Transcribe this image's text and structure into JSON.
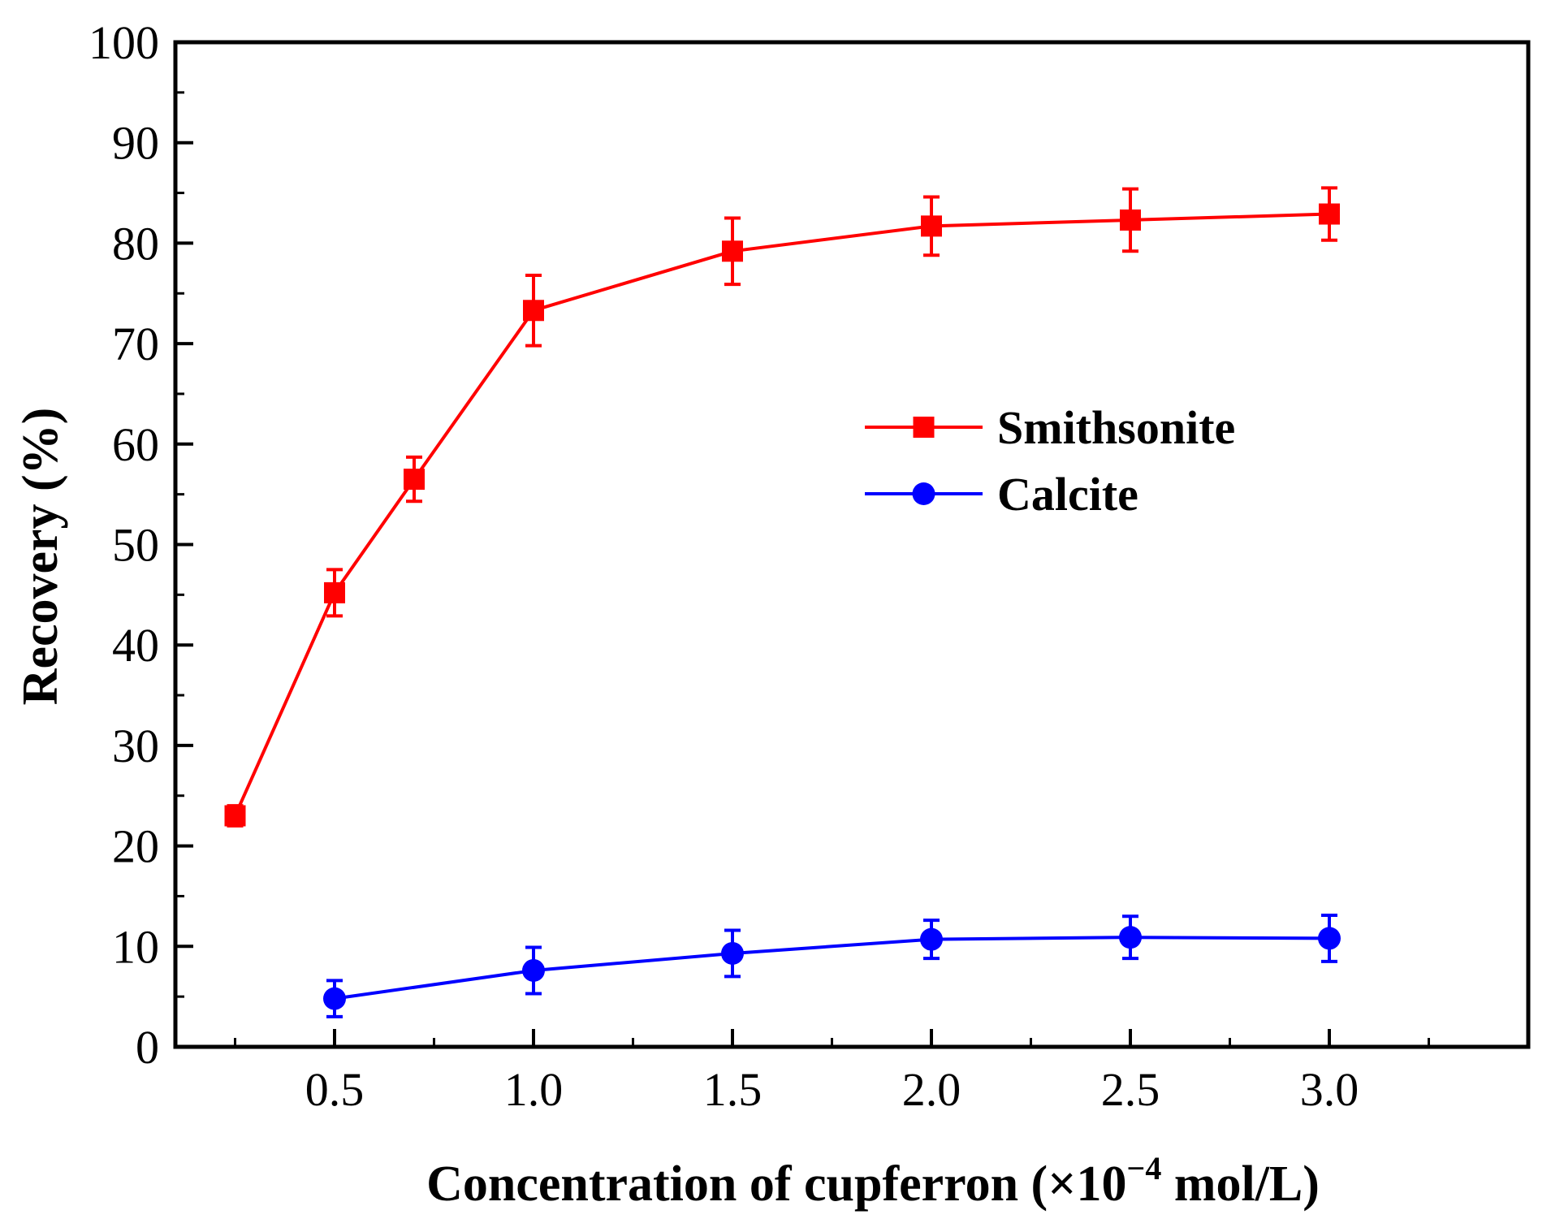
{
  "chart_data": {
    "type": "line",
    "title": "",
    "xlabel_main": "Concentration of cupferron (×10",
    "xlabel_exp": "−4",
    "xlabel_unit": " mol/L)",
    "ylabel": "Recovery (%)",
    "xlim": [
      0.1,
      3.5
    ],
    "ylim": [
      0,
      100
    ],
    "x_ticks": [
      0.5,
      1.0,
      1.5,
      2.0,
      2.5,
      3.0
    ],
    "x_tick_labels": [
      "0.5",
      "1.0",
      "1.5",
      "2.0",
      "2.5",
      "3.0"
    ],
    "x_minor_ticks": [
      0.25,
      0.75,
      1.25,
      1.75,
      2.25,
      2.75,
      3.25
    ],
    "y_ticks": [
      0,
      10,
      20,
      30,
      40,
      50,
      60,
      70,
      80,
      90,
      100
    ],
    "y_tick_labels": [
      "0",
      "10",
      "20",
      "30",
      "40",
      "50",
      "60",
      "70",
      "80",
      "90",
      "100"
    ],
    "grid": false,
    "legend_position": "center-right",
    "series": [
      {
        "name": "Smithsonite",
        "color": "#ff0000",
        "marker": "square",
        "x": [
          0.25,
          0.5,
          0.7,
          1.0,
          1.5,
          2.0,
          2.5,
          3.0
        ],
        "y": [
          23.0,
          45.2,
          56.5,
          73.3,
          79.2,
          81.7,
          82.3,
          82.9
        ],
        "err": [
          1.0,
          2.3,
          2.2,
          3.5,
          3.3,
          2.9,
          3.1,
          2.6
        ]
      },
      {
        "name": "Calcite",
        "color": "#0000ff",
        "marker": "circle",
        "x": [
          0.5,
          1.0,
          1.5,
          2.0,
          2.5,
          3.0
        ],
        "y": [
          4.8,
          7.6,
          9.3,
          10.7,
          10.9,
          10.8
        ],
        "err": [
          1.8,
          2.3,
          2.3,
          1.9,
          2.1,
          2.3
        ]
      }
    ]
  }
}
